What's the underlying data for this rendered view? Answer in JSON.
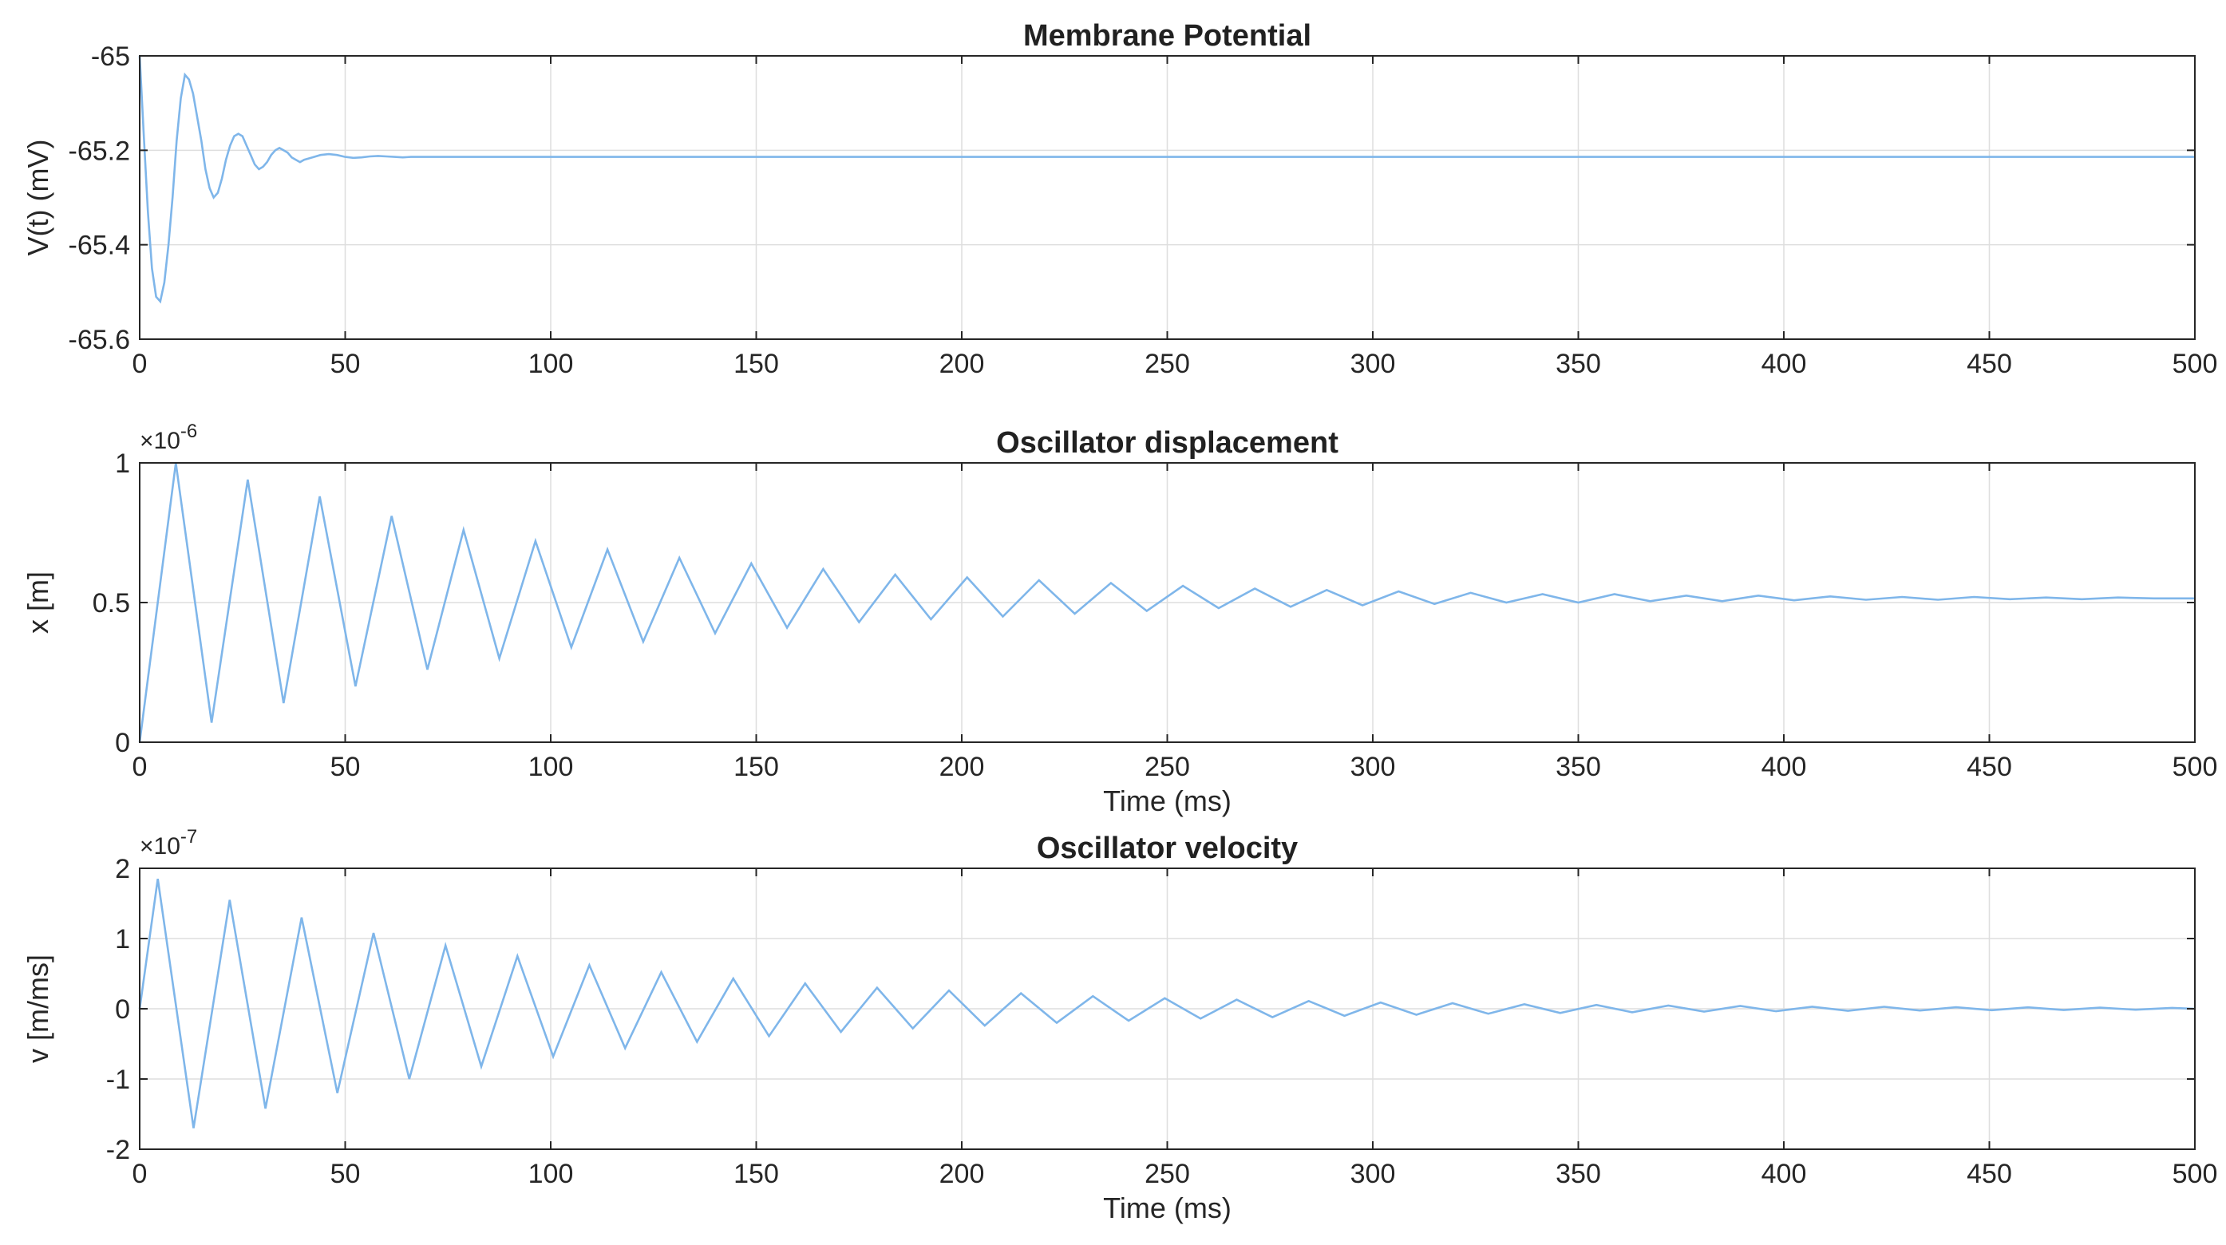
{
  "chart_data": [
    {
      "type": "line",
      "title": "Membrane Potential",
      "xlabel": "",
      "ylabel": "V(t) (mV)",
      "xlim": [
        0,
        500
      ],
      "ylim": [
        -65.6,
        -65
      ],
      "x_ticks": [
        "0",
        "50",
        "100",
        "150",
        "200",
        "250",
        "300",
        "350",
        "400",
        "450",
        "500"
      ],
      "y_ticks": [
        "-65",
        "-65.2",
        "-65.4",
        "-65.6"
      ],
      "y_exponent": "",
      "grid": true,
      "series": [
        {
          "color": "#7fb6ea",
          "x": [
            0,
            1,
            2,
            3,
            4,
            5,
            6,
            7,
            8,
            9,
            10,
            11,
            12,
            13,
            14,
            15,
            16,
            17,
            18,
            19,
            20,
            21,
            22,
            23,
            24,
            25,
            26,
            27,
            28,
            29,
            30,
            31,
            32,
            33,
            34,
            35,
            36,
            37,
            38,
            39,
            40,
            42,
            44,
            46,
            48,
            50,
            52,
            54,
            56,
            58,
            60,
            62,
            64,
            66,
            68,
            70,
            75,
            80,
            90,
            100,
            150,
            200,
            250,
            300,
            350,
            400,
            450,
            500
          ],
          "y": [
            -65.0,
            -65.17,
            -65.33,
            -65.45,
            -65.51,
            -65.52,
            -65.48,
            -65.4,
            -65.3,
            -65.18,
            -65.09,
            -65.04,
            -65.05,
            -65.08,
            -65.13,
            -65.18,
            -65.24,
            -65.28,
            -65.3,
            -65.29,
            -65.26,
            -65.22,
            -65.19,
            -65.17,
            -65.165,
            -65.17,
            -65.19,
            -65.21,
            -65.23,
            -65.24,
            -65.235,
            -65.225,
            -65.21,
            -65.2,
            -65.195,
            -65.2,
            -65.205,
            -65.215,
            -65.22,
            -65.225,
            -65.22,
            -65.215,
            -65.21,
            -65.208,
            -65.21,
            -65.214,
            -65.216,
            -65.215,
            -65.213,
            -65.212,
            -65.213,
            -65.214,
            -65.215,
            -65.214,
            -65.214,
            -65.214,
            -65.214,
            -65.214,
            -65.214,
            -65.214,
            -65.214,
            -65.214,
            -65.214,
            -65.214,
            -65.214,
            -65.214,
            -65.214,
            -65.214
          ]
        }
      ]
    },
    {
      "type": "line",
      "title": "Oscillator displacement",
      "xlabel": "Time (ms)",
      "ylabel": "x [m]",
      "xlim": [
        0,
        500
      ],
      "ylim": [
        0,
        1
      ],
      "x_ticks": [
        "0",
        "50",
        "100",
        "150",
        "200",
        "250",
        "300",
        "350",
        "400",
        "450",
        "500"
      ],
      "y_ticks": [
        "1",
        "0.5",
        "0"
      ],
      "y_exponent": "×10",
      "y_exponent_power": "-6",
      "grid": true,
      "series": [
        {
          "color": "#7fb6ea",
          "x": [
            0,
            8.8,
            17.5,
            26.3,
            35.0,
            43.8,
            52.5,
            61.3,
            70.0,
            78.8,
            87.5,
            96.3,
            105.0,
            113.8,
            122.5,
            131.3,
            140.0,
            148.8,
            157.5,
            166.3,
            175.0,
            183.8,
            192.5,
            201.3,
            210.0,
            218.8,
            227.5,
            236.3,
            245.0,
            253.8,
            262.5,
            271.3,
            280.0,
            288.8,
            297.5,
            306.3,
            315.0,
            323.8,
            332.5,
            341.3,
            350.0,
            358.8,
            367.5,
            376.3,
            385.0,
            393.8,
            402.5,
            411.3,
            420.0,
            428.8,
            437.5,
            446.3,
            455.0,
            463.8,
            472.5,
            481.3,
            490.0,
            500.0
          ],
          "y": [
            0.0,
            1.0,
            0.07,
            0.94,
            0.14,
            0.88,
            0.2,
            0.81,
            0.26,
            0.76,
            0.3,
            0.72,
            0.34,
            0.69,
            0.36,
            0.66,
            0.39,
            0.64,
            0.41,
            0.62,
            0.43,
            0.6,
            0.44,
            0.59,
            0.45,
            0.58,
            0.46,
            0.57,
            0.47,
            0.56,
            0.48,
            0.55,
            0.485,
            0.545,
            0.49,
            0.54,
            0.495,
            0.535,
            0.5,
            0.53,
            0.5,
            0.53,
            0.505,
            0.525,
            0.505,
            0.525,
            0.508,
            0.522,
            0.51,
            0.52,
            0.51,
            0.52,
            0.512,
            0.518,
            0.512,
            0.518,
            0.515,
            0.515
          ]
        }
      ]
    },
    {
      "type": "line",
      "title": "Oscillator velocity",
      "xlabel": "Time (ms)",
      "ylabel": "v [m/ms]",
      "xlim": [
        0,
        500
      ],
      "ylim": [
        -2,
        2
      ],
      "x_ticks": [
        "0",
        "50",
        "100",
        "150",
        "200",
        "250",
        "300",
        "350",
        "400",
        "450",
        "500"
      ],
      "y_ticks": [
        "2",
        "1",
        "0",
        "-1",
        "-2"
      ],
      "y_exponent": "×10",
      "y_exponent_power": "-7",
      "grid": true,
      "series": [
        {
          "color": "#7fb6ea",
          "x": [
            0,
            4.4,
            13.1,
            21.9,
            30.6,
            39.4,
            48.1,
            56.9,
            65.6,
            74.4,
            83.1,
            91.9,
            100.6,
            109.4,
            118.1,
            126.9,
            135.6,
            144.4,
            153.1,
            161.9,
            170.6,
            179.4,
            188.1,
            196.9,
            205.6,
            214.4,
            223.1,
            231.9,
            240.6,
            249.4,
            258.1,
            266.9,
            275.6,
            284.4,
            293.1,
            301.9,
            310.6,
            319.4,
            328.1,
            336.9,
            345.6,
            354.4,
            363.1,
            371.9,
            380.6,
            389.4,
            398.1,
            406.9,
            415.6,
            424.4,
            433.1,
            441.9,
            450.6,
            459.4,
            468.1,
            476.9,
            485.6,
            494.4,
            500.0
          ],
          "y": [
            0.0,
            1.85,
            -1.7,
            1.55,
            -1.42,
            1.3,
            -1.2,
            1.08,
            -1.0,
            0.9,
            -0.82,
            0.75,
            -0.68,
            0.62,
            -0.56,
            0.52,
            -0.47,
            0.43,
            -0.39,
            0.36,
            -0.33,
            0.3,
            -0.28,
            0.26,
            -0.24,
            0.22,
            -0.2,
            0.18,
            -0.17,
            0.15,
            -0.14,
            0.13,
            -0.12,
            0.11,
            -0.1,
            0.09,
            -0.085,
            0.08,
            -0.07,
            0.065,
            -0.06,
            0.055,
            -0.05,
            0.045,
            -0.04,
            0.04,
            -0.035,
            0.03,
            -0.03,
            0.028,
            -0.025,
            0.022,
            -0.02,
            0.02,
            -0.018,
            0.016,
            -0.014,
            0.012,
            0.0
          ]
        }
      ]
    }
  ]
}
